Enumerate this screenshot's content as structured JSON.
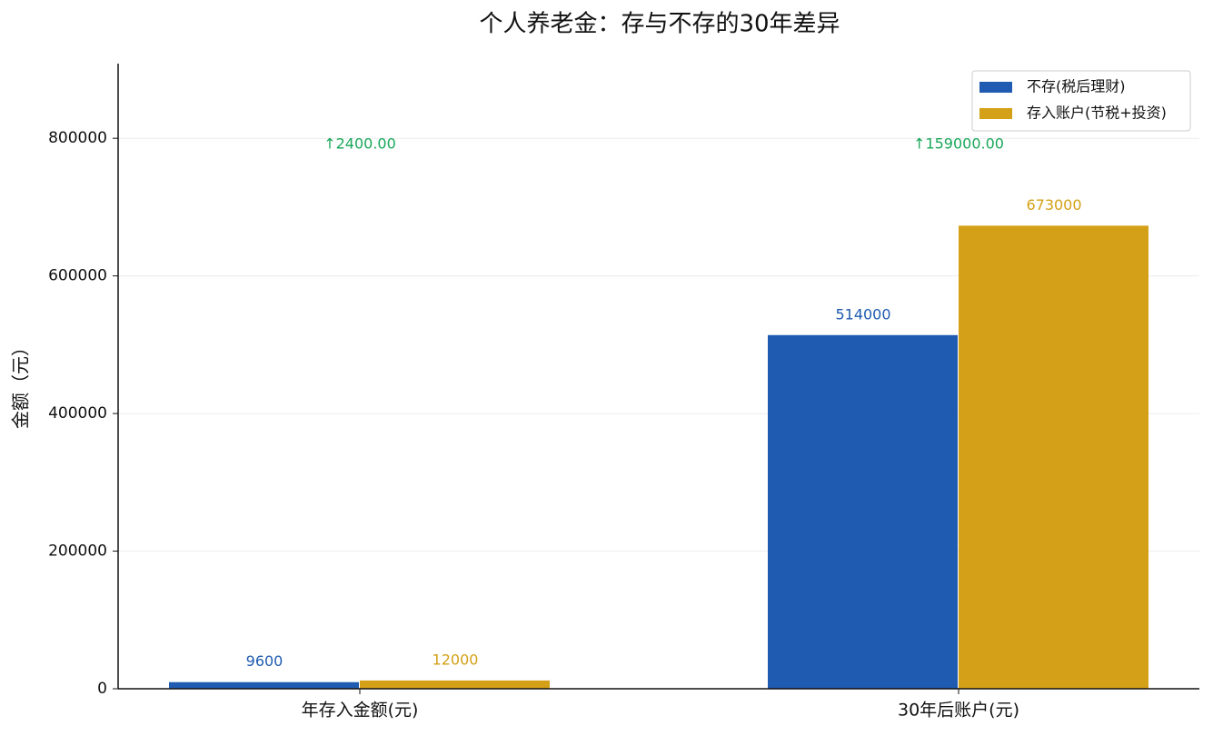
{
  "chart_data": {
    "type": "bar",
    "title": "个人养老金：存与不存的30年差异",
    "ylabel": "金额（元）",
    "categories": [
      "年存入金额(元)",
      "30年后账户(元)"
    ],
    "series": [
      {
        "name": "不存(税后理财)",
        "color": "#1f5bb0",
        "values": [
          9600,
          514000
        ]
      },
      {
        "name": "存入账户(节税+投资)",
        "color": "#d4a017",
        "values": [
          12000,
          673000
        ]
      }
    ],
    "annotations": [
      {
        "text": "↑2400.00",
        "color": "#1aa85a"
      },
      {
        "text": "↑159000.00",
        "color": "#1aa85a"
      }
    ],
    "ylim": [
      0,
      908550
    ],
    "yticks": [
      0,
      200000,
      400000,
      600000,
      800000
    ],
    "grid": true,
    "legend": "upper right"
  }
}
